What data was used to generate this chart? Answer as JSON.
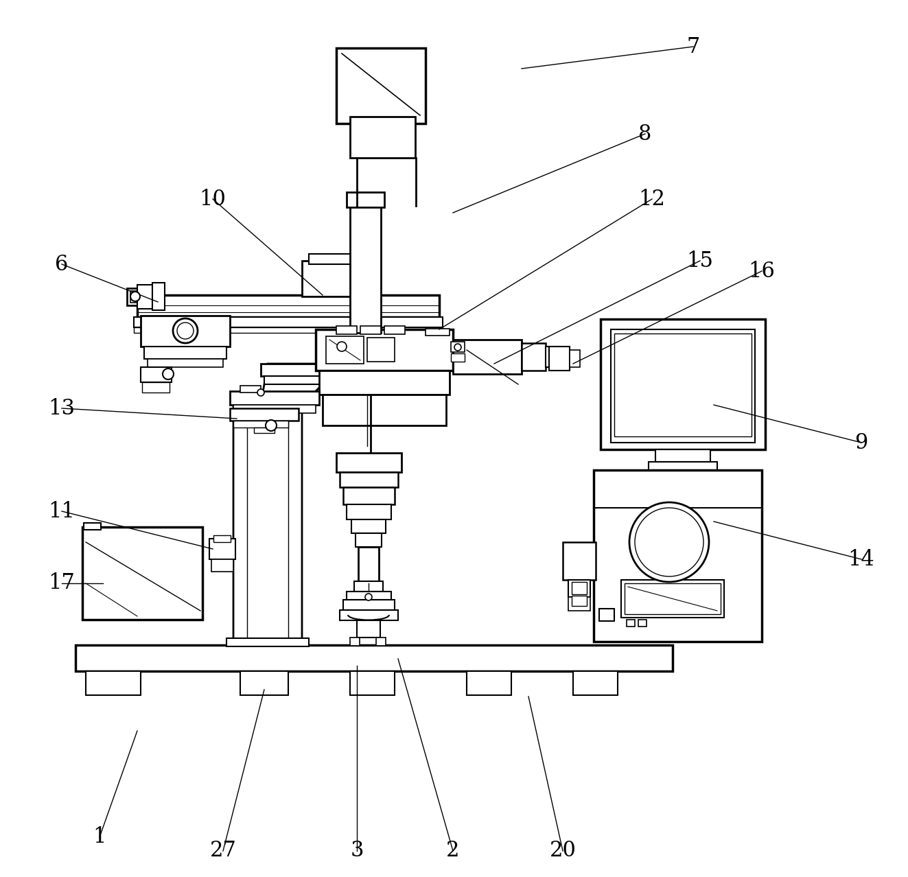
{
  "bg_color": "#ffffff",
  "line_color": "#000000",
  "figsize": [
    13.23,
    12.78
  ],
  "dpi": 100,
  "annotations": [
    [
      "7",
      1010,
      68,
      760,
      100
    ],
    [
      "8",
      940,
      195,
      660,
      310
    ],
    [
      "10",
      310,
      290,
      470,
      430
    ],
    [
      "12",
      950,
      290,
      640,
      480
    ],
    [
      "6",
      90,
      385,
      230,
      440
    ],
    [
      "13",
      90,
      595,
      345,
      610
    ],
    [
      "11",
      90,
      745,
      310,
      800
    ],
    [
      "17",
      90,
      850,
      150,
      850
    ],
    [
      "1",
      145,
      1220,
      200,
      1065
    ],
    [
      "27",
      325,
      1240,
      385,
      1005
    ],
    [
      "3",
      520,
      1240,
      520,
      970
    ],
    [
      "2",
      660,
      1240,
      580,
      960
    ],
    [
      "20",
      820,
      1240,
      770,
      1015
    ],
    [
      "15",
      1020,
      380,
      720,
      530
    ],
    [
      "16",
      1110,
      395,
      835,
      530
    ],
    [
      "9",
      1255,
      645,
      1040,
      590
    ],
    [
      "14",
      1255,
      815,
      1040,
      760
    ]
  ]
}
